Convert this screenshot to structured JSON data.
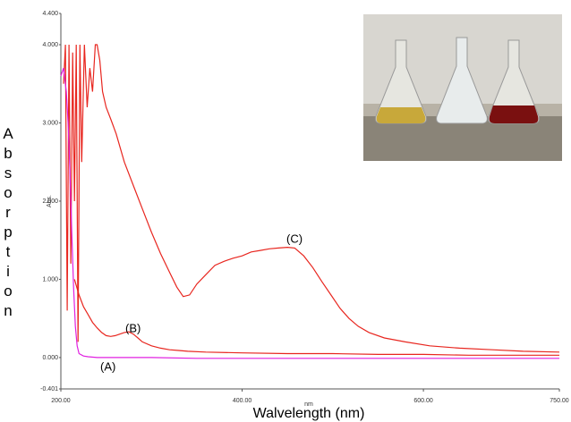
{
  "chart_data": {
    "type": "line",
    "y_label": "Absorption",
    "y_unit": "Abs.",
    "x_label": "Walvelength (nm)",
    "x_unit": "nm",
    "xlim": [
      200,
      750
    ],
    "xticks": [
      {
        "value": 200,
        "label": "200.00"
      },
      {
        "value": 400,
        "label": "400.00"
      },
      {
        "value": 600,
        "label": "600.00"
      },
      {
        "value": 750,
        "label": "750.00"
      }
    ],
    "ylim": [
      -0.401,
      4.4
    ],
    "yticks": [
      {
        "value": -0.401,
        "label": "-0.401"
      },
      {
        "value": 0,
        "label": "0.000"
      },
      {
        "value": 1,
        "label": "1.000"
      },
      {
        "value": 2,
        "label": "2.000"
      },
      {
        "value": 3,
        "label": "3.000"
      },
      {
        "value": 4,
        "label": "4.000"
      },
      {
        "value": 4.4,
        "label": "4.400"
      }
    ],
    "series": [
      {
        "name": "(C)",
        "color": "#e8261f",
        "x": [
          203,
          205,
          207,
          209,
          211,
          213,
          215,
          217,
          219,
          221,
          223,
          226,
          229,
          232,
          235,
          238,
          240,
          243,
          246,
          250,
          255,
          261,
          270,
          281,
          290,
          300,
          310,
          320,
          328,
          335,
          342,
          350,
          360,
          370,
          380,
          390,
          400,
          410,
          420,
          430,
          440,
          450,
          458,
          468,
          478,
          488,
          498,
          508,
          518,
          528,
          540,
          557,
          580,
          607,
          640,
          676,
          710,
          750
        ],
        "values": [
          3.5,
          4.0,
          0.6,
          4.0,
          1.2,
          3.9,
          2.0,
          4.0,
          0.2,
          4.0,
          2.5,
          4.0,
          3.2,
          3.7,
          3.4,
          4.0,
          4.0,
          3.8,
          3.4,
          3.2,
          3.05,
          2.86,
          2.5,
          2.17,
          1.9,
          1.6,
          1.33,
          1.09,
          0.9,
          0.78,
          0.8,
          0.94,
          1.06,
          1.18,
          1.23,
          1.27,
          1.3,
          1.35,
          1.37,
          1.39,
          1.4,
          1.41,
          1.4,
          1.3,
          1.15,
          0.97,
          0.8,
          0.63,
          0.5,
          0.4,
          0.32,
          0.25,
          0.2,
          0.15,
          0.12,
          0.1,
          0.08,
          0.07
        ]
      },
      {
        "name": "(B)",
        "color": "#e8261f",
        "x": [
          215,
          220,
          225,
          230,
          235,
          240,
          245,
          250,
          255,
          260,
          265,
          270,
          275,
          280,
          285,
          290,
          300,
          310,
          320,
          330,
          340,
          360,
          400,
          450,
          500,
          550,
          600,
          650,
          700,
          750
        ],
        "values": [
          1.0,
          0.8,
          0.65,
          0.55,
          0.45,
          0.38,
          0.32,
          0.28,
          0.27,
          0.28,
          0.3,
          0.32,
          0.33,
          0.3,
          0.25,
          0.2,
          0.15,
          0.12,
          0.1,
          0.09,
          0.08,
          0.07,
          0.06,
          0.05,
          0.05,
          0.04,
          0.04,
          0.03,
          0.03,
          0.03
        ]
      },
      {
        "name": "(A)",
        "color": "#e020e0",
        "x": [
          200,
          203,
          206,
          208,
          210,
          212,
          214,
          216,
          218,
          220,
          225,
          230,
          240,
          260,
          300,
          350,
          400,
          500,
          600,
          750
        ],
        "values": [
          3.6,
          3.7,
          3.4,
          3.0,
          2.4,
          1.6,
          0.9,
          0.4,
          0.15,
          0.05,
          0.02,
          0.01,
          0.0,
          0.0,
          0.0,
          -0.01,
          -0.01,
          -0.01,
          -0.01,
          -0.01
        ]
      }
    ],
    "annotations": [
      "(A)",
      "(B)",
      "(C)"
    ]
  }
}
